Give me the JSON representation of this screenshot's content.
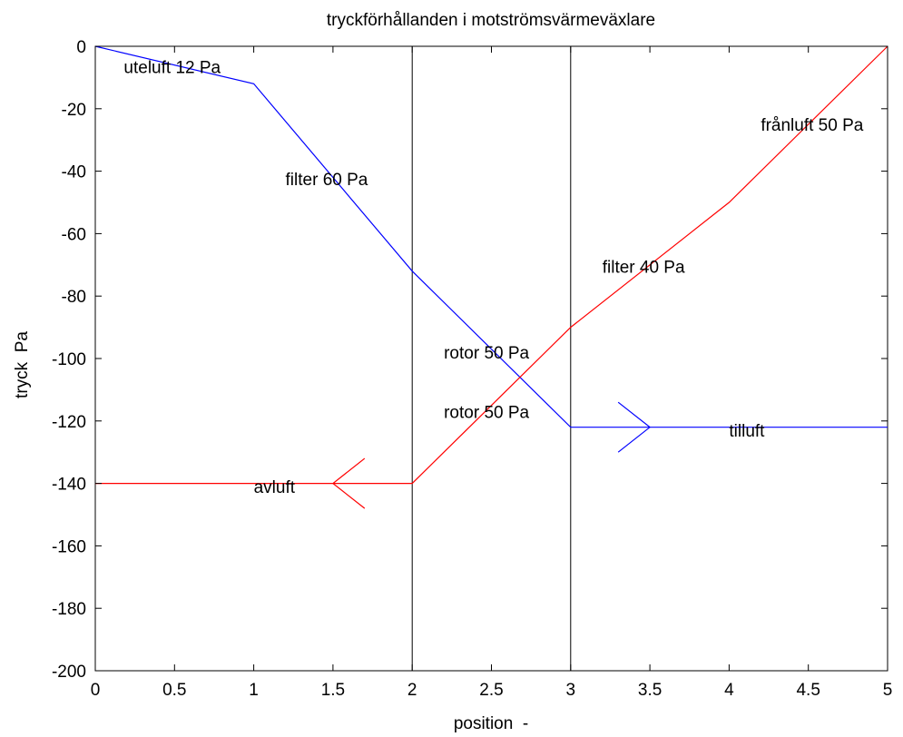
{
  "chart_data": {
    "type": "line",
    "title": "tryckförhållanden i motströmsvärmeväxlare",
    "xlabel": "position  -",
    "ylabel": "tryck  Pa",
    "xlim": [
      0,
      5
    ],
    "ylim": [
      -200,
      0
    ],
    "xticks": [
      0,
      0.5,
      1,
      1.5,
      2,
      2.5,
      3,
      3.5,
      4,
      4.5,
      5
    ],
    "xtick_labels": [
      "0",
      "0.5",
      "1",
      "1.5",
      "2",
      "2.5",
      "3",
      "3.5",
      "4",
      "4.5",
      "5"
    ],
    "yticks": [
      0,
      -20,
      -40,
      -60,
      -80,
      -100,
      -120,
      -140,
      -160,
      -180,
      -200
    ],
    "ytick_labels": [
      "0",
      "-20",
      "-40",
      "-60",
      "-80",
      "-100",
      "-120",
      "-140",
      "-160",
      "-180",
      "-200"
    ],
    "grid": false,
    "vertical_lines": [
      2,
      3
    ],
    "series": [
      {
        "color": "#0000ff",
        "x": [
          0,
          1,
          2,
          3,
          5
        ],
        "y": [
          0,
          -12,
          -72,
          -122,
          -122
        ]
      },
      {
        "color": "#ff0000",
        "x": [
          0,
          2,
          3,
          4,
          5
        ],
        "y": [
          -140,
          -140,
          -90,
          -50,
          0
        ]
      }
    ],
    "arrows": [
      {
        "color": "#0000ff",
        "tip": [
          3.5,
          -122
        ],
        "direction": "right",
        "spread_x": 0.2,
        "spread_y": 8
      },
      {
        "color": "#ff0000",
        "tip": [
          1.5,
          -140
        ],
        "direction": "left",
        "spread_x": 0.2,
        "spread_y": 8
      }
    ],
    "annotations": [
      {
        "text": "uteluft 12 Pa",
        "x": 0.18,
        "y": -6.5
      },
      {
        "text": "filter 60 Pa",
        "x": 1.2,
        "y": -42.5
      },
      {
        "text": "frånluft 50 Pa",
        "x": 4.2,
        "y": -25
      },
      {
        "text": "filter 40 Pa",
        "x": 3.2,
        "y": -70.5
      },
      {
        "text": "rotor 50 Pa",
        "x": 2.2,
        "y": -98
      },
      {
        "text": "rotor 50 Pa",
        "x": 2.2,
        "y": -117
      },
      {
        "text": "tilluft",
        "x": 4.0,
        "y": -123
      },
      {
        "text": "avluft",
        "x": 1.0,
        "y": -141
      }
    ]
  }
}
